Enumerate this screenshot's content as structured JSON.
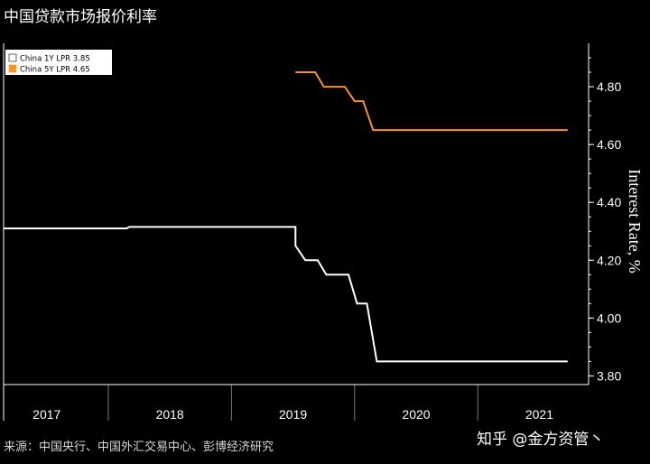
{
  "title": "中国贷款市场报价利率",
  "source": "来源：中国央行、中国外汇交易中心、彭博经济研究",
  "watermark": "知乎 @金方资管丶",
  "colors": {
    "background": "#000000",
    "one_year": "#ffffff",
    "five_year": "#f7931e",
    "legend_bg": "#ffffff",
    "axis": "#ffffff",
    "grid": "#7a7a7a"
  },
  "chart_data": {
    "type": "line",
    "title": "中国贷款市场报价利率",
    "ylabel": "Interest Rate, %",
    "xlabel": "",
    "ylim": [
      3.77,
      4.95
    ],
    "xlim": [
      2016.65,
      2021.4
    ],
    "y_ticks": [
      3.8,
      4.0,
      4.2,
      4.4,
      4.6,
      4.8
    ],
    "y_tick_labels": [
      "3.80",
      "4.00",
      "4.20",
      "4.40",
      "4.60",
      "4.80"
    ],
    "x_ticks": [
      "2017",
      "2018",
      "2019",
      "2020",
      "2021"
    ],
    "x_tick_centers": [
      2017.0,
      2018.0,
      2019.0,
      2020.0,
      2021.0
    ],
    "x_gridlines": [
      2017.5,
      2018.5,
      2019.5,
      2020.5
    ],
    "grid": false,
    "legend_position": "top-left",
    "series": [
      {
        "name": "China 1Y LPR 3.85",
        "color": "#ffffff",
        "points": [
          [
            2016.65,
            4.31
          ],
          [
            2017.65,
            4.31
          ],
          [
            2017.67,
            4.315
          ],
          [
            2019.02,
            4.315
          ],
          [
            2019.02,
            4.25
          ],
          [
            2019.1,
            4.2
          ],
          [
            2019.2,
            4.2
          ],
          [
            2019.27,
            4.15
          ],
          [
            2019.45,
            4.15
          ],
          [
            2019.52,
            4.05
          ],
          [
            2019.6,
            4.05
          ],
          [
            2019.68,
            3.85
          ],
          [
            2021.23,
            3.85
          ]
        ]
      },
      {
        "name": "China 5Y LPR 4.65",
        "color": "#f7931e",
        "points": [
          [
            2019.02,
            4.85
          ],
          [
            2019.18,
            4.85
          ],
          [
            2019.25,
            4.8
          ],
          [
            2019.42,
            4.8
          ],
          [
            2019.5,
            4.75
          ],
          [
            2019.57,
            4.75
          ],
          [
            2019.65,
            4.65
          ],
          [
            2021.23,
            4.65
          ]
        ]
      }
    ]
  }
}
